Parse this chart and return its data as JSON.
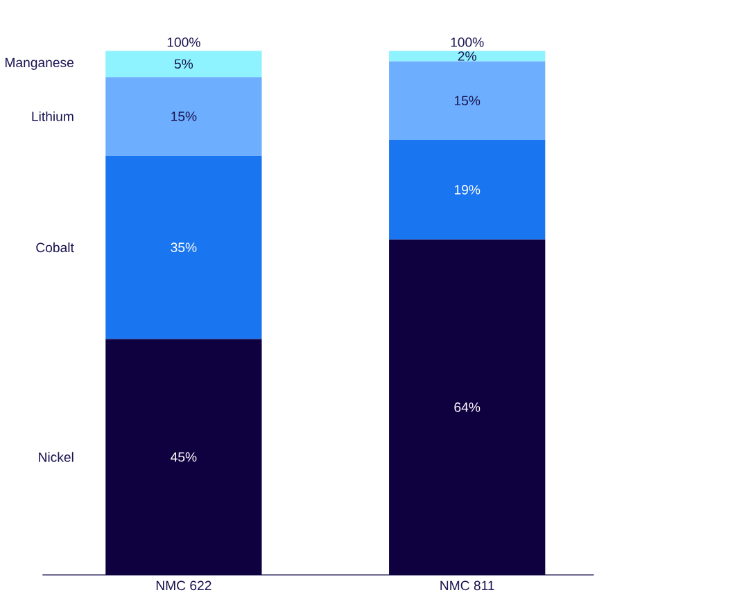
{
  "chart_data": {
    "type": "bar",
    "stacked": true,
    "categories": [
      "NMC 622",
      "NMC 811"
    ],
    "series": [
      {
        "name": "Nickel",
        "color": "#0f0040",
        "values": [
          45,
          64
        ],
        "value_labels": [
          "45%",
          "64%"
        ]
      },
      {
        "name": "Cobalt",
        "color": "#1a75f0",
        "values": [
          35,
          19
        ],
        "value_labels": [
          "35%",
          "19%"
        ]
      },
      {
        "name": "Lithium",
        "color": "#6eaeff",
        "values": [
          15,
          15
        ],
        "value_labels": [
          "15%",
          "15%"
        ]
      },
      {
        "name": "Manganese",
        "color": "#8ef2ff",
        "values": [
          5,
          2
        ],
        "value_labels": [
          "5%",
          "2%"
        ]
      }
    ],
    "totals": [
      "100%",
      "100%"
    ],
    "ylim": [
      0,
      100
    ],
    "tick_labels": "x"
  }
}
